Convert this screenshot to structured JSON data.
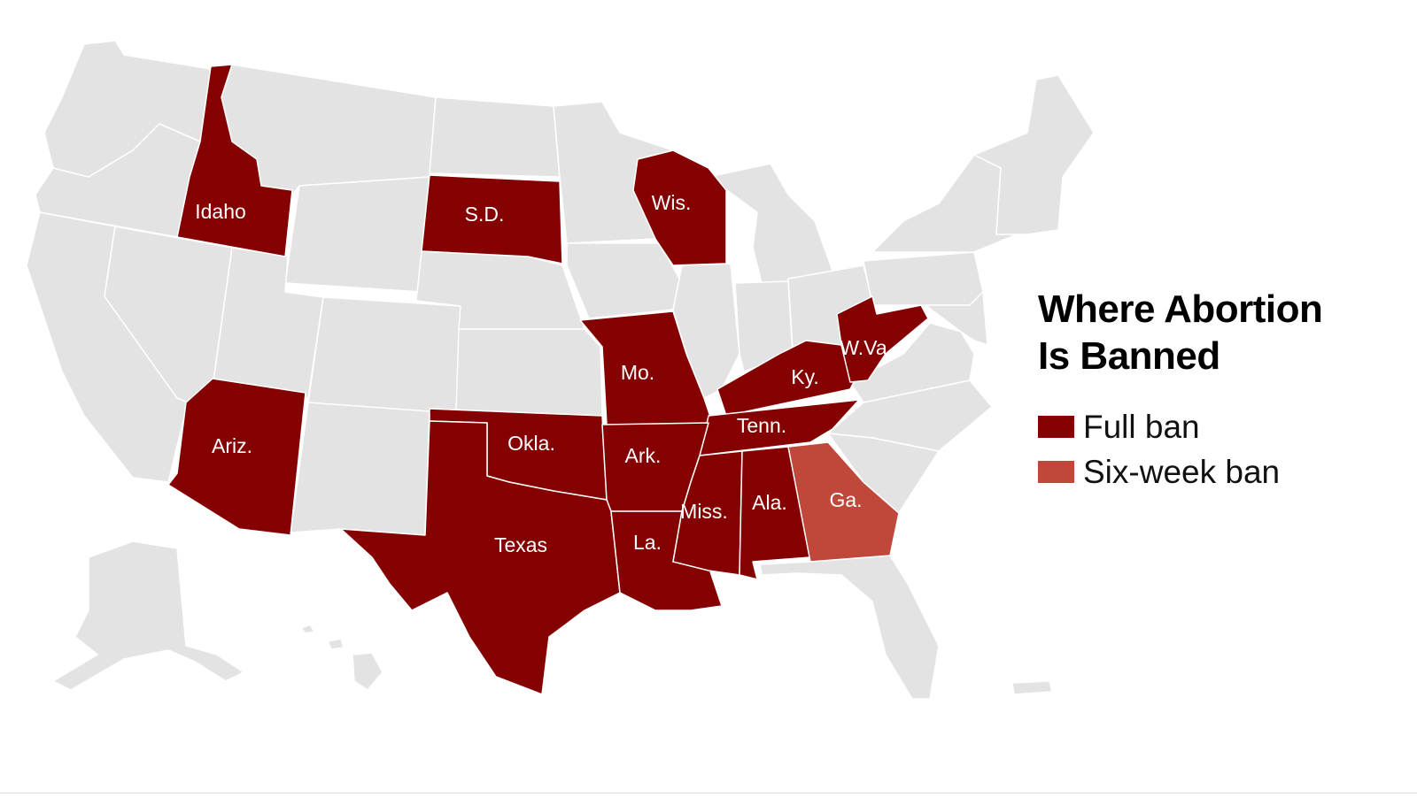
{
  "legend": {
    "title_line1": "Where Abortion",
    "title_line2": "Is Banned",
    "items": [
      {
        "label": "Full ban",
        "color": "#850000"
      },
      {
        "label": "Six-week ban",
        "color": "#c0483a"
      }
    ]
  },
  "colors": {
    "no_ban": "#e3e3e3",
    "full_ban": "#850000",
    "six_week_ban": "#c0483a",
    "border": "#ffffff"
  },
  "states": {
    "idaho": {
      "label": "Idaho",
      "status": "full"
    },
    "south_dakota": {
      "label": "S.D.",
      "status": "full"
    },
    "wisconsin": {
      "label": "Wis.",
      "status": "full"
    },
    "arizona": {
      "label": "Ariz.",
      "status": "full"
    },
    "missouri": {
      "label": "Mo.",
      "status": "full"
    },
    "kentucky": {
      "label": "Ky.",
      "status": "full"
    },
    "west_virginia": {
      "label": "W.Va",
      "status": "full"
    },
    "tennessee": {
      "label": "Tenn.",
      "status": "full"
    },
    "oklahoma": {
      "label": "Okla.",
      "status": "full"
    },
    "arkansas": {
      "label": "Ark.",
      "status": "full"
    },
    "texas": {
      "label": "Texas",
      "status": "full"
    },
    "louisiana": {
      "label": "La.",
      "status": "full"
    },
    "mississippi": {
      "label": "Miss.",
      "status": "full"
    },
    "alabama": {
      "label": "Ala.",
      "status": "full"
    },
    "georgia": {
      "label": "Ga.",
      "status": "six_week"
    }
  }
}
